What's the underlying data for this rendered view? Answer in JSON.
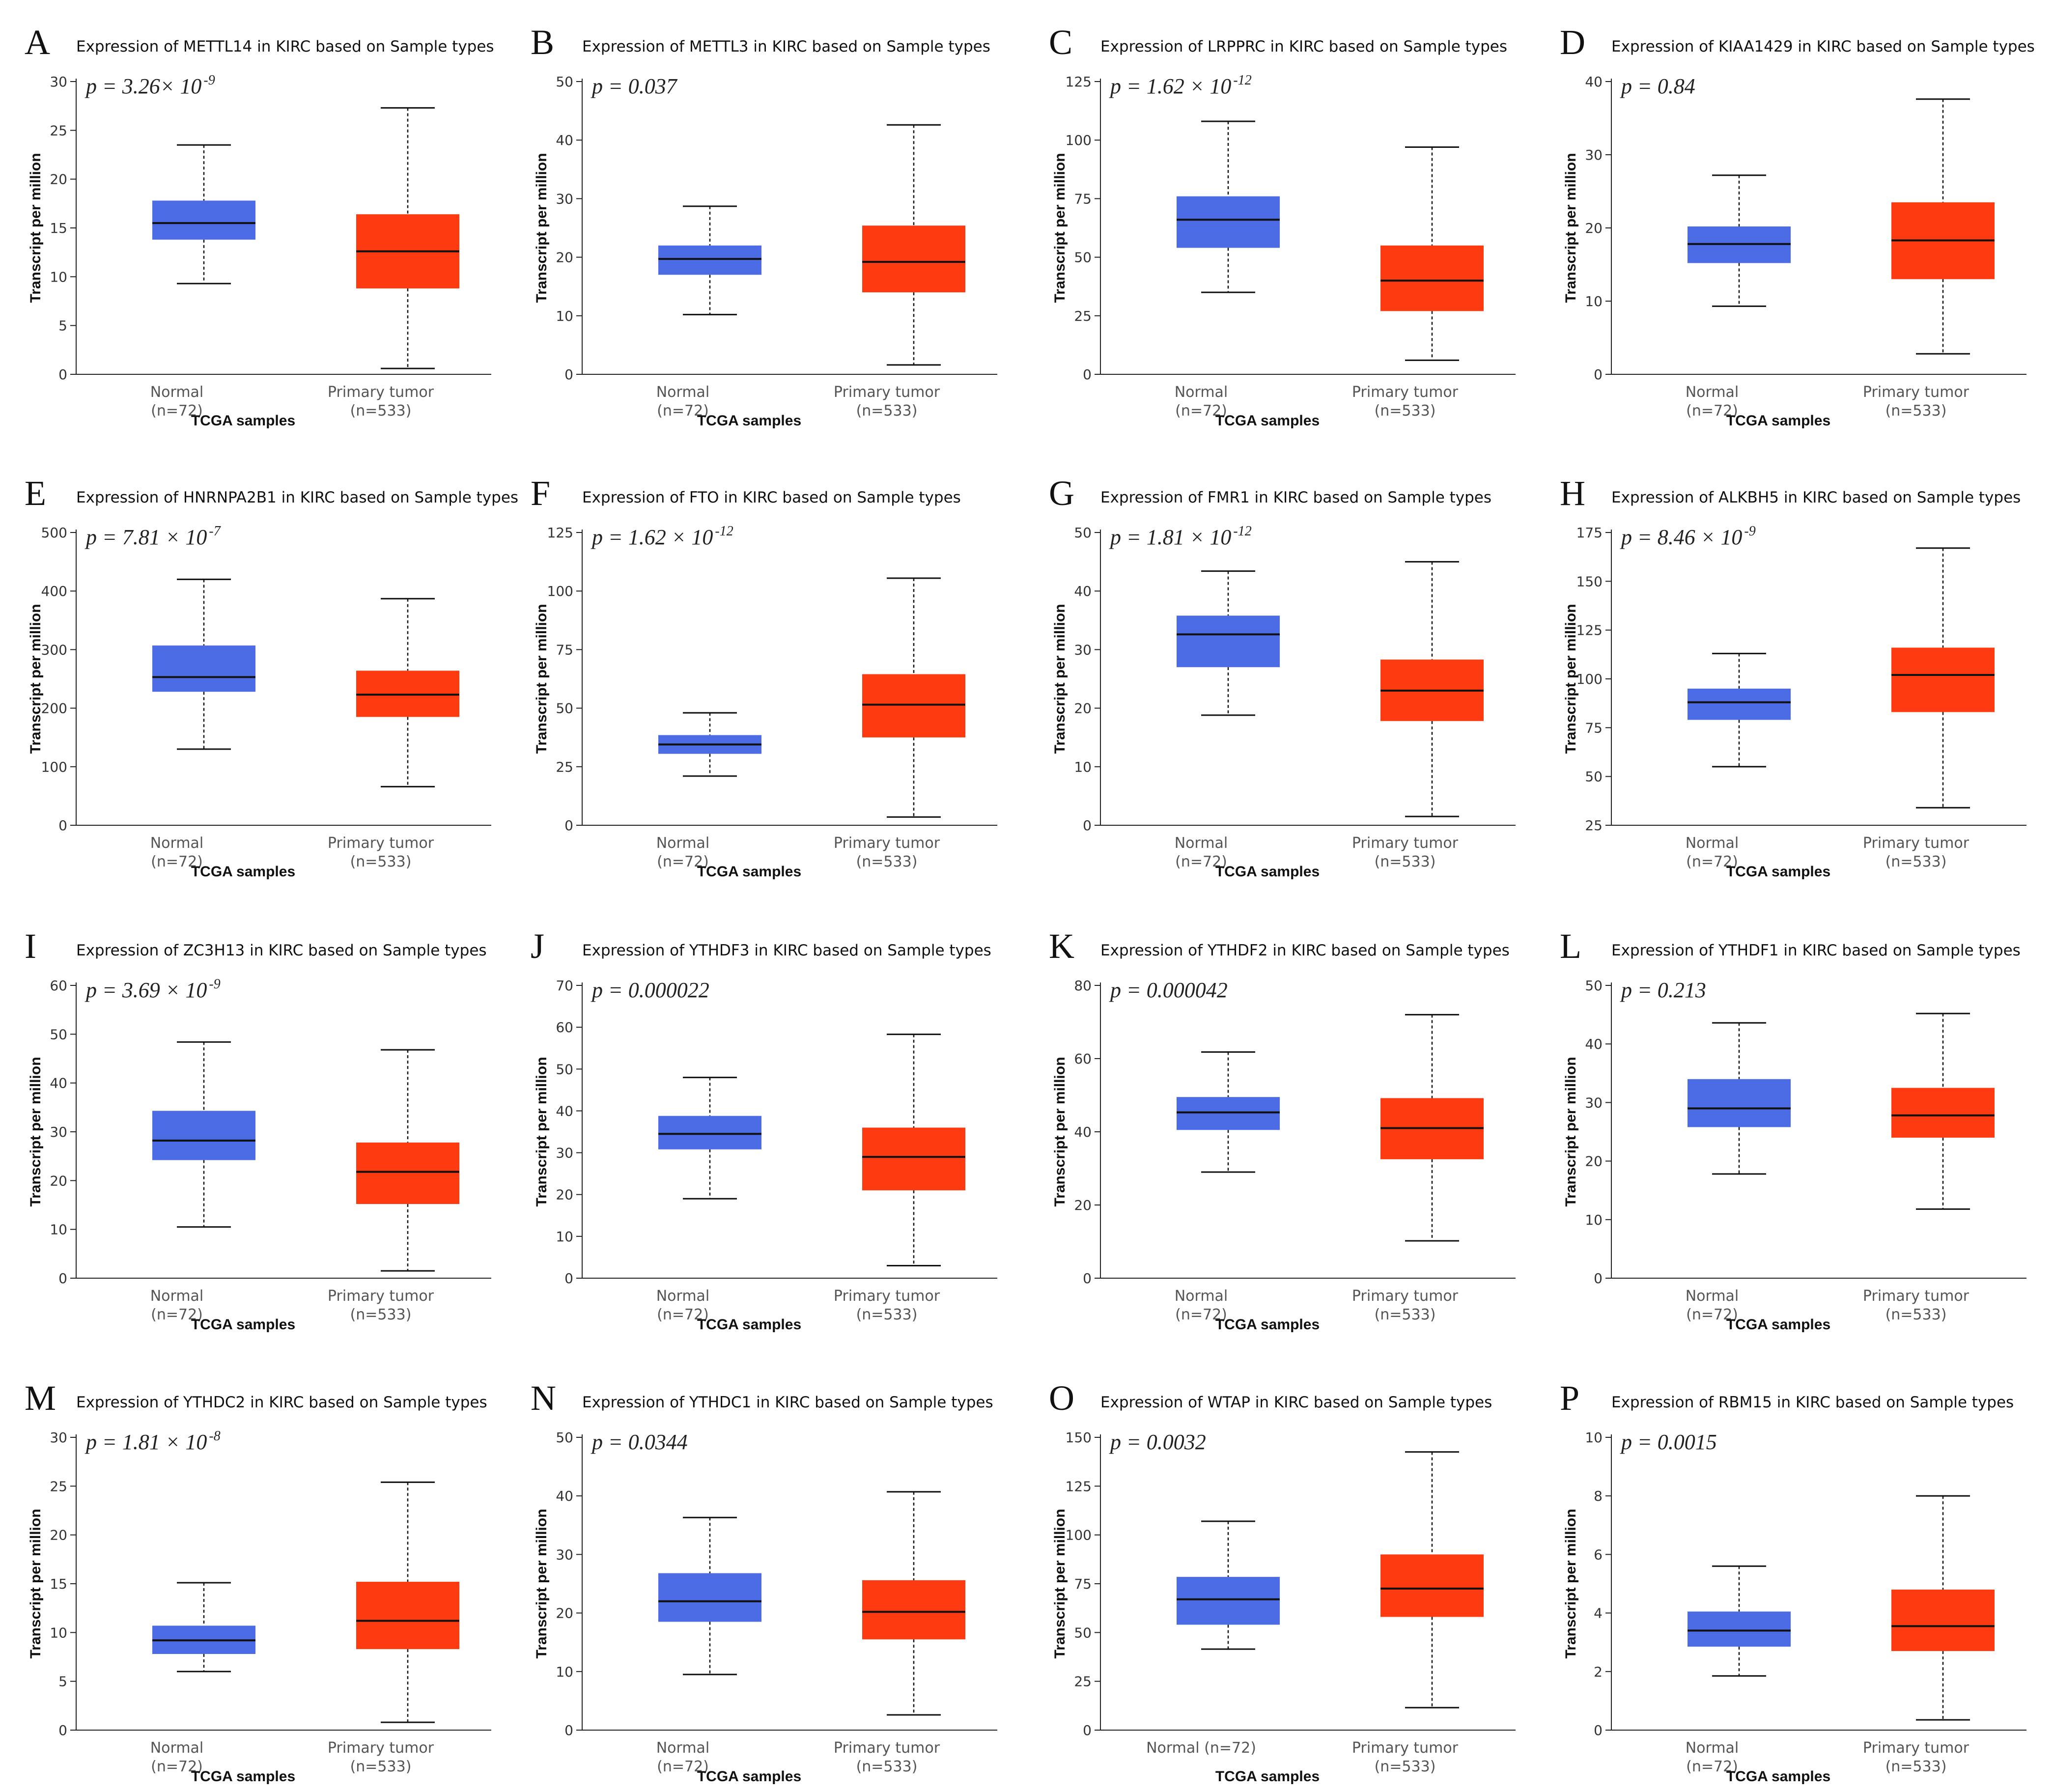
{
  "figure": {
    "caption_x_label": "TCGA samples",
    "y_label": "Transcript per million"
  },
  "colors": {
    "normal": "#4c6ce5",
    "tumor": "#fe3a10"
  },
  "chart_data": [
    {
      "type": "box",
      "letter": "A",
      "title": "Expression of METTL14 in KIRC based on Sample types",
      "p_value": {
        "text": "p = 3.26× 10",
        "exp": "-9"
      },
      "xlabel": "TCGA samples",
      "ylabel": "Transcript per million",
      "yticks": [
        0,
        5,
        10,
        15,
        20,
        25,
        30
      ],
      "ylim": [
        0,
        30
      ],
      "categories": [
        {
          "name": "Normal",
          "n": "(n=72)"
        },
        {
          "name": "Primary tumor",
          "n": "(n=533)"
        }
      ],
      "boxes": [
        {
          "min": 9.3,
          "q1": 13.8,
          "median": 15.5,
          "q3": 17.8,
          "max": 23.5
        },
        {
          "min": 0.6,
          "q1": 8.8,
          "median": 12.6,
          "q3": 16.4,
          "max": 27.3
        }
      ]
    },
    {
      "type": "box",
      "letter": "B",
      "title": "Expression of METTL3 in KIRC based on Sample types",
      "p_value": {
        "text": "p = 0.037",
        "exp": ""
      },
      "xlabel": "TCGA samples",
      "ylabel": "Transcript per million",
      "yticks": [
        0,
        10,
        20,
        30,
        40,
        50
      ],
      "ylim": [
        0,
        50
      ],
      "categories": [
        {
          "name": "Normal",
          "n": "(n=72)"
        },
        {
          "name": "Primary tumor",
          "n": "(n=533)"
        }
      ],
      "boxes": [
        {
          "min": 10.2,
          "q1": 17.0,
          "median": 19.7,
          "q3": 22.0,
          "max": 28.7
        },
        {
          "min": 1.6,
          "q1": 14.0,
          "median": 19.2,
          "q3": 25.4,
          "max": 42.6
        }
      ]
    },
    {
      "type": "box",
      "letter": "C",
      "title": "Expression of LRPPRC in KIRC based on Sample types",
      "p_value": {
        "text": "p = 1.62 × 10",
        "exp": "-12"
      },
      "xlabel": "TCGA samples",
      "ylabel": "Transcript per million",
      "yticks": [
        0,
        25,
        50,
        75,
        100,
        125
      ],
      "ylim": [
        0,
        125
      ],
      "categories": [
        {
          "name": "Normal",
          "n": "(n=72)"
        },
        {
          "name": "Primary tumor",
          "n": "(n=533)"
        }
      ],
      "boxes": [
        {
          "min": 35,
          "q1": 54,
          "median": 66,
          "q3": 76,
          "max": 108
        },
        {
          "min": 6,
          "q1": 27,
          "median": 40,
          "q3": 55,
          "max": 97
        }
      ]
    },
    {
      "type": "box",
      "letter": "D",
      "title": "Expression of KIAA1429 in KIRC based on Sample types",
      "p_value": {
        "text": "p = 0.84",
        "exp": ""
      },
      "xlabel": "TCGA samples",
      "ylabel": "Transcript per million",
      "yticks": [
        0,
        10,
        20,
        30,
        40
      ],
      "ylim": [
        0,
        40
      ],
      "categories": [
        {
          "name": "Normal",
          "n": "(n=72)"
        },
        {
          "name": "Primary tumor",
          "n": "(n=533)"
        }
      ],
      "boxes": [
        {
          "min": 9.3,
          "q1": 15.2,
          "median": 17.8,
          "q3": 20.2,
          "max": 27.2
        },
        {
          "min": 2.8,
          "q1": 13.0,
          "median": 18.3,
          "q3": 23.5,
          "max": 37.6
        }
      ]
    },
    {
      "type": "box",
      "letter": "E",
      "title": "Expression of HNRNPA2B1 in KIRC based on Sample types",
      "p_value": {
        "text": "p = 7.81 × 10",
        "exp": "-7"
      },
      "xlabel": "TCGA samples",
      "ylabel": "Transcript per million",
      "yticks": [
        0,
        100,
        200,
        300,
        400,
        500
      ],
      "ylim": [
        0,
        500
      ],
      "categories": [
        {
          "name": "Normal",
          "n": "(n=72)"
        },
        {
          "name": "Primary tumor",
          "n": "(n=533)"
        }
      ],
      "boxes": [
        {
          "min": 130,
          "q1": 228,
          "median": 253,
          "q3": 307,
          "max": 420
        },
        {
          "min": 66,
          "q1": 185,
          "median": 223,
          "q3": 264,
          "max": 387
        }
      ]
    },
    {
      "type": "box",
      "letter": "F",
      "title": "Expression of FTO in KIRC based on Sample types",
      "p_value": {
        "text": "p = 1.62 × 10",
        "exp": "-12"
      },
      "xlabel": "TCGA samples",
      "ylabel": "Transcript per million",
      "yticks": [
        0,
        25,
        50,
        75,
        100,
        125
      ],
      "ylim": [
        0,
        125
      ],
      "categories": [
        {
          "name": "Normal",
          "n": "(n=72)"
        },
        {
          "name": "Primary tumor",
          "n": "(n=533)"
        }
      ],
      "boxes": [
        {
          "min": 21,
          "q1": 30.5,
          "median": 34.5,
          "q3": 38.5,
          "max": 48
        },
        {
          "min": 3.5,
          "q1": 37.5,
          "median": 51.5,
          "q3": 64.5,
          "max": 105.5
        }
      ]
    },
    {
      "type": "box",
      "letter": "G",
      "title": "Expression of FMR1 in KIRC based on Sample types",
      "p_value": {
        "text": "p = 1.81 × 10",
        "exp": "-12"
      },
      "xlabel": "TCGA samples",
      "ylabel": "Transcript per million",
      "yticks": [
        0,
        10,
        20,
        30,
        40,
        50
      ],
      "ylim": [
        0,
        50
      ],
      "categories": [
        {
          "name": "Normal",
          "n": "(n=72)"
        },
        {
          "name": "Primary tumor",
          "n": "(n=533)"
        }
      ],
      "boxes": [
        {
          "min": 18.8,
          "q1": 27.0,
          "median": 32.6,
          "q3": 35.8,
          "max": 43.4
        },
        {
          "min": 1.5,
          "q1": 17.8,
          "median": 23.0,
          "q3": 28.3,
          "max": 45.0
        }
      ]
    },
    {
      "type": "box",
      "letter": "H",
      "title": "Expression of ALKBH5 in KIRC based on Sample types",
      "p_value": {
        "text": "p = 8.46 × 10",
        "exp": "-9"
      },
      "xlabel": "TCGA samples",
      "ylabel": "Transcript per million",
      "yticks": [
        25,
        50,
        75,
        100,
        125,
        150,
        175
      ],
      "ylim": [
        25,
        175
      ],
      "categories": [
        {
          "name": "Normal",
          "n": "(n=72)"
        },
        {
          "name": "Primary tumor",
          "n": "(n=533)"
        }
      ],
      "boxes": [
        {
          "min": 55,
          "q1": 79,
          "median": 88,
          "q3": 95,
          "max": 113
        },
        {
          "min": 34,
          "q1": 83,
          "median": 102,
          "q3": 116,
          "max": 167
        }
      ]
    },
    {
      "type": "box",
      "letter": "I",
      "title": "Expression of ZC3H13 in KIRC based on Sample types",
      "p_value": {
        "text": "p = 3.69 × 10",
        "exp": "-9"
      },
      "xlabel": "TCGA samples",
      "ylabel": "Transcript per million",
      "yticks": [
        0,
        10,
        20,
        30,
        40,
        50,
        60
      ],
      "ylim": [
        0,
        60
      ],
      "categories": [
        {
          "name": "Normal",
          "n": "(n=72)"
        },
        {
          "name": "Primary tumor",
          "n": "(n=533)"
        }
      ],
      "boxes": [
        {
          "min": 10.5,
          "q1": 24.2,
          "median": 28.2,
          "q3": 34.3,
          "max": 48.4
        },
        {
          "min": 1.5,
          "q1": 15.2,
          "median": 21.8,
          "q3": 27.8,
          "max": 46.8
        }
      ]
    },
    {
      "type": "box",
      "letter": "J",
      "title": "Expression of YTHDF3 in KIRC based on Sample types",
      "p_value": {
        "text": "p = 0.000022",
        "exp": ""
      },
      "xlabel": "TCGA samples",
      "ylabel": "Transcript per million",
      "yticks": [
        0,
        10,
        20,
        30,
        40,
        50,
        60,
        70
      ],
      "ylim": [
        0,
        70
      ],
      "categories": [
        {
          "name": "Normal",
          "n": "(n=72)"
        },
        {
          "name": "Primary tumor",
          "n": "(n=533)"
        }
      ],
      "boxes": [
        {
          "min": 19.0,
          "q1": 30.8,
          "median": 34.5,
          "q3": 38.8,
          "max": 48.0
        },
        {
          "min": 3.0,
          "q1": 21.0,
          "median": 29.0,
          "q3": 36.0,
          "max": 58.3
        }
      ]
    },
    {
      "type": "box",
      "letter": "K",
      "title": "Expression of YTHDF2 in KIRC based on Sample types",
      "p_value": {
        "text": "p = 0.000042",
        "exp": ""
      },
      "xlabel": "TCGA samples",
      "ylabel": "Transcript per million",
      "yticks": [
        0,
        20,
        40,
        60,
        80
      ],
      "ylim": [
        0,
        80
      ],
      "categories": [
        {
          "name": "Normal",
          "n": "(n=72)"
        },
        {
          "name": "Primary tumor",
          "n": "(n=533)"
        }
      ],
      "boxes": [
        {
          "min": 29.0,
          "q1": 40.5,
          "median": 45.3,
          "q3": 49.5,
          "max": 61.8
        },
        {
          "min": 10.2,
          "q1": 32.5,
          "median": 41.0,
          "q3": 49.2,
          "max": 72.0
        }
      ]
    },
    {
      "type": "box",
      "letter": "L",
      "title": "Expression of YTHDF1 in KIRC based on Sample types",
      "p_value": {
        "text": "p = 0.213",
        "exp": ""
      },
      "xlabel": "TCGA samples",
      "ylabel": "Transcript per million",
      "yticks": [
        0,
        10,
        20,
        30,
        40,
        50
      ],
      "ylim": [
        0,
        50
      ],
      "categories": [
        {
          "name": "Normal",
          "n": "(n=72)"
        },
        {
          "name": "Primary tumor",
          "n": "(n=533)"
        }
      ],
      "boxes": [
        {
          "min": 17.8,
          "q1": 25.8,
          "median": 29.0,
          "q3": 34.0,
          "max": 43.6
        },
        {
          "min": 11.8,
          "q1": 24.0,
          "median": 27.8,
          "q3": 32.5,
          "max": 45.2
        }
      ]
    },
    {
      "type": "box",
      "letter": "M",
      "title": "Expression of YTHDC2 in KIRC based on Sample types",
      "p_value": {
        "text": "p = 1.81 × 10",
        "exp": "-8"
      },
      "xlabel": "TCGA samples",
      "ylabel": "Transcript per million",
      "yticks": [
        0,
        5,
        10,
        15,
        20,
        25,
        30
      ],
      "ylim": [
        0,
        30
      ],
      "categories": [
        {
          "name": "Normal",
          "n": "(n=72)"
        },
        {
          "name": "Primary tumor",
          "n": "(n=533)"
        }
      ],
      "boxes": [
        {
          "min": 6.0,
          "q1": 7.8,
          "median": 9.2,
          "q3": 10.7,
          "max": 15.1
        },
        {
          "min": 0.8,
          "q1": 8.3,
          "median": 11.2,
          "q3": 15.2,
          "max": 25.4
        }
      ]
    },
    {
      "type": "box",
      "letter": "N",
      "title": "Expression of YTHDC1 in KIRC based on Sample types",
      "p_value": {
        "text": "p = 0.0344",
        "exp": ""
      },
      "xlabel": "TCGA samples",
      "ylabel": "Transcript per million",
      "yticks": [
        0,
        10,
        20,
        30,
        40,
        50
      ],
      "ylim": [
        0,
        50
      ],
      "categories": [
        {
          "name": "Normal",
          "n": "(n=72)"
        },
        {
          "name": "Primary tumor",
          "n": "(n=533)"
        }
      ],
      "boxes": [
        {
          "min": 9.5,
          "q1": 18.5,
          "median": 22.0,
          "q3": 26.8,
          "max": 36.3
        },
        {
          "min": 2.6,
          "q1": 15.5,
          "median": 20.2,
          "q3": 25.6,
          "max": 40.7
        }
      ]
    },
    {
      "type": "box",
      "letter": "O",
      "title": "Expression of WTAP in KIRC based on Sample types",
      "p_value": {
        "text": "p = 0.0032",
        "exp": ""
      },
      "xlabel": "TCGA samples",
      "ylabel": "Transcript per million",
      "yticks": [
        0,
        25,
        50,
        75,
        100,
        125,
        150
      ],
      "ylim": [
        0,
        150
      ],
      "categories": [
        {
          "name": "Normal (n=72)",
          "n": ""
        },
        {
          "name": "Primary tumor",
          "n": "(n=533)"
        }
      ],
      "boxes": [
        {
          "min": 41.5,
          "q1": 54,
          "median": 67,
          "q3": 78.5,
          "max": 107
        },
        {
          "min": 11.5,
          "q1": 58,
          "median": 72.5,
          "q3": 90,
          "max": 142.5
        }
      ]
    },
    {
      "type": "box",
      "letter": "P",
      "title": "Expression of RBM15 in KIRC based on Sample types",
      "p_value": {
        "text": "p = 0.0015",
        "exp": ""
      },
      "xlabel": "TCGA samples",
      "ylabel": "Transcript per million",
      "yticks": [
        0,
        2,
        4,
        6,
        8,
        10
      ],
      "ylim": [
        0,
        10
      ],
      "categories": [
        {
          "name": "Normal",
          "n": "(n=72)"
        },
        {
          "name": "Primary tumor",
          "n": "(n=533)"
        }
      ],
      "boxes": [
        {
          "min": 1.85,
          "q1": 2.85,
          "median": 3.4,
          "q3": 4.05,
          "max": 5.6
        },
        {
          "min": 0.35,
          "q1": 2.7,
          "median": 3.55,
          "q3": 4.8,
          "max": 8.0
        }
      ]
    }
  ]
}
